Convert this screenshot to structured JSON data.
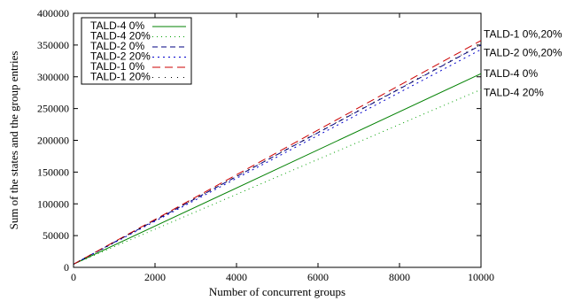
{
  "chart_data": {
    "type": "line",
    "xlabel": "Number of concurrent groups",
    "ylabel": "Sum of the states and the group entries",
    "xlim": [
      0,
      10000
    ],
    "ylim": [
      0,
      400000
    ],
    "xticks": [
      0,
      2000,
      4000,
      6000,
      8000,
      10000
    ],
    "yticks": [
      0,
      50000,
      100000,
      150000,
      200000,
      250000,
      300000,
      350000,
      400000
    ],
    "grid": false,
    "legend_position": "top-left",
    "series": [
      {
        "name": "TALD-4  0%",
        "color": "#008000",
        "dash": "",
        "x": [
          0,
          10000
        ],
        "y": [
          5000,
          305000
        ]
      },
      {
        "name": "TALD-4  20%",
        "color": "#00a000",
        "dash": "1,4",
        "x": [
          0,
          10000
        ],
        "y": [
          5000,
          280000
        ]
      },
      {
        "name": "TALD-2  0%",
        "color": "#000080",
        "dash": "6,4",
        "x": [
          0,
          10000
        ],
        "y": [
          5000,
          350000
        ]
      },
      {
        "name": "TALD-2  20%",
        "color": "#0000cc",
        "dash": "2,4",
        "x": [
          0,
          10000
        ],
        "y": [
          5000,
          343000
        ]
      },
      {
        "name": "TALD-1  0%",
        "color": "#cc0000",
        "dash": "9,5",
        "x": [
          0,
          10000
        ],
        "y": [
          5000,
          357000
        ]
      },
      {
        "name": "TALD-1  20%",
        "color": "#000000",
        "dash": "1,6",
        "x": [
          0,
          10000
        ],
        "y": [
          5000,
          351000
        ]
      }
    ],
    "annotations": [
      {
        "text": "TALD-1  0%,20%",
        "y": 367000
      },
      {
        "text": "TALD-2  0%,20%",
        "y": 338000
      },
      {
        "text": "TALD-4  0%",
        "y": 305000
      },
      {
        "text": "TALD-4  20%",
        "y": 275000
      }
    ]
  }
}
